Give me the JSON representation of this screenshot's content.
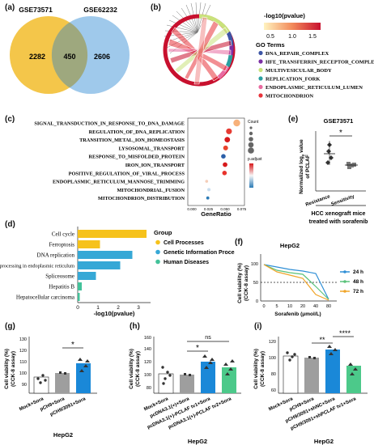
{
  "panels": {
    "a": {
      "label": "(a)",
      "left_title": "GSE73571",
      "right_title": "GSE62232",
      "left_only": "2282",
      "overlap": "450",
      "right_only": "2606",
      "colors": {
        "left": "#f3c13b",
        "right": "#8ec0e8"
      }
    },
    "b": {
      "label": "(b)",
      "scale_title": "-log10(pvalue)",
      "scale_ticks": [
        "0.5",
        "1.0",
        "1.5"
      ],
      "legend_title": "GO Terms",
      "terms": [
        {
          "name": "DNA_REPAIR_COMPLEX",
          "color": "#3d55a5"
        },
        {
          "name": "HFE_TRANSFERRIN_RECEPTOR_COMPLEX",
          "color": "#7b2fa3"
        },
        {
          "name": "MULTIVESICULAR_BODY",
          "color": "#c9e27b"
        },
        {
          "name": "REPLICATION_FORK",
          "color": "#2a9fa0"
        },
        {
          "name": "ENDOPLASMIC_RETICULUM_LUMEN",
          "color": "#e86aa0"
        },
        {
          "name": "MITOCHONDRION",
          "color": "#e8333a"
        }
      ]
    },
    "c": {
      "label": "(c)",
      "xlabel": "GeneRatio",
      "xticks": [
        "0.000",
        "0.025",
        "0.050",
        "0.075"
      ],
      "size_legend_title": "Count",
      "color_legend_title": "p.adjust",
      "terms": [
        "SIGNAL_TRANSDUCTION_IN_RESPONSE_TO_DNA_DAMAGE",
        "REGULATION_OF_DNA_REPLICATION",
        "TRANSITION_METAL_ION_HOMEOSTASIS",
        "LYSOSOMAL_TRANSPORT",
        "RESPONSE_TO_MISFOLDED_PROTEIN",
        "IRON_ION_TRANSPORT",
        "POSITIVE_REGULATION_OF_VIRAL_PROCESS",
        "ENDOPLASMIC_RETICULUM_MANNOSE_TRIMMING",
        "MITOCHONDRIAL_FUSION",
        "MITOCHONDRION_DISTRIBUTION"
      ]
    },
    "d": {
      "label": "(d)",
      "xlabel": "-log10(pvalue)",
      "xticks": [
        "0",
        "1",
        "2",
        "3"
      ],
      "legend_title": "Group",
      "groups": [
        {
          "name": "Cell Processes",
          "color": "#f6c21b"
        },
        {
          "name": "Genetic Information Processing",
          "color": "#36a8d6"
        },
        {
          "name": "Human Diseases",
          "color": "#43c29a"
        }
      ],
      "bars": [
        {
          "name": "Cell cycle",
          "value": 3.4,
          "group": 0
        },
        {
          "name": "Ferroptosis",
          "value": 1.1,
          "group": 0
        },
        {
          "name": "DNA replication",
          "value": 2.7,
          "group": 1
        },
        {
          "name": "Protein processing in endoplasmic reticulum",
          "value": 2.1,
          "group": 1
        },
        {
          "name": "Spliceosome",
          "value": 0.9,
          "group": 1
        },
        {
          "name": "Hepatitis B",
          "value": 0.2,
          "group": 2
        },
        {
          "name": "Hepatocellular carcinoma",
          "value": 0.1,
          "group": 2
        }
      ]
    },
    "e": {
      "label": "(e)",
      "title": "GSE73571",
      "ylabel_line1": "Normalized log",
      "ylabel_sub": "2",
      "ylabel_line2": " value",
      "ylabel_line3": "of PCLAF",
      "categories": [
        "Resistance",
        "Sensitivity"
      ],
      "sig": "*",
      "caption_line1": "HCC xenograft mice",
      "caption_line2": "treated with sorafenib"
    },
    "f": {
      "label": "(f)",
      "title": "HepG2",
      "ylabel": "Cell viability (%)",
      "ylabel2": "(CCK-8 assay)",
      "xlabel": "Sorafenib (μmol/L)",
      "yticks": [
        "0",
        "50",
        "100"
      ],
      "xticks": [
        "0",
        "5",
        "10",
        "20",
        "40",
        "80"
      ],
      "legend": [
        "24 h",
        "48 h",
        "72 h"
      ],
      "colors": [
        "#2f8fd6",
        "#5bc27a",
        "#f0a52a"
      ]
    },
    "g": {
      "label": "(g)",
      "ylabel": "Cell viability (%)",
      "ylabel2": "(CCK-8 assay)",
      "yticks": [
        "90",
        "100",
        "110",
        "120",
        "130"
      ],
      "categories": [
        "Mock+Sora",
        "pCH9+Sora",
        "pCH9/3091+Sora"
      ],
      "sig": "*",
      "footer": "HepG2"
    },
    "h": {
      "label": "(h)",
      "ylabel": "Cell viability (%)",
      "ylabel2": "(CCK-8 assay)",
      "yticks": [
        "80",
        "100",
        "120",
        "140",
        "160"
      ],
      "categories": [
        "Mock+Sora",
        "pcDNA3.1(+)+Sora",
        "pcDNA3.1(+)-PCLAF tv1+Sora",
        "pcDNA3.1(+)-PCLAF tv2+Sora"
      ],
      "sig1": "*",
      "sig2": "ns",
      "footer": "HepG2"
    },
    "i": {
      "label": "(i)",
      "ylabel": "Cell viability (%)",
      "ylabel2": "(CCK-8 assay)",
      "yticks": [
        "60",
        "80",
        "100",
        "120"
      ],
      "categories": [
        "Mock+Sora",
        "pCH9+Sora",
        "pCH9/3091+shNC+Sora",
        "pCH9/3091+shPCLAF tv1+Sora"
      ],
      "sig1": "**",
      "sig2": "****",
      "footer": "HepG2"
    }
  }
}
